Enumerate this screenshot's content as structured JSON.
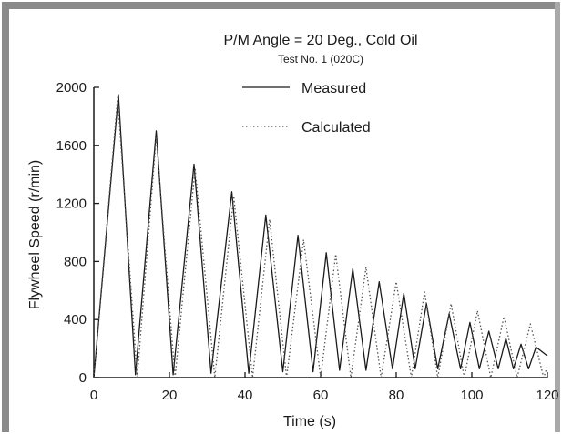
{
  "chart_data": {
    "type": "line",
    "title": "P/M Angle = 20 Deg., Cold Oil",
    "subtitle": "Test No. 1 (020C)",
    "xlabel": "Time (s)",
    "ylabel": "Flywheel Speed (r/min)",
    "xlim": [
      0,
      120
    ],
    "ylim": [
      0,
      2000
    ],
    "xticks": [
      "0",
      "20",
      "40",
      "60",
      "80",
      "100",
      "120"
    ],
    "yticks": [
      "0",
      "400",
      "800",
      "1200",
      "1600",
      "2000"
    ],
    "grid": false,
    "legend_position": "top-center",
    "series": [
      {
        "name": "Measured",
        "style": "solid",
        "color": "#1a1a1a",
        "x": [
          0,
          6.5,
          11,
          16.5,
          21,
          26.5,
          31,
          36.5,
          41,
          45.5,
          50,
          54,
          58,
          61.5,
          65,
          68.5,
          72,
          75.5,
          79,
          82,
          85,
          88,
          91,
          94,
          97,
          99.5,
          102,
          104.5,
          107,
          109,
          111,
          113,
          115,
          117,
          120
        ],
        "y": [
          0,
          1950,
          20,
          1700,
          20,
          1470,
          30,
          1280,
          30,
          1120,
          40,
          980,
          40,
          860,
          50,
          750,
          50,
          660,
          60,
          580,
          60,
          510,
          60,
          440,
          60,
          380,
          60,
          320,
          60,
          270,
          60,
          230,
          60,
          210,
          150
        ]
      },
      {
        "name": "Calculated",
        "style": "dotted",
        "color": "#555555",
        "x": [
          0,
          6.3,
          11.5,
          16.5,
          21.5,
          26.8,
          32,
          37,
          42,
          46.5,
          51,
          55.5,
          60,
          64,
          68,
          72,
          76,
          80,
          84,
          87.5,
          91,
          94.5,
          98,
          101.5,
          105,
          108.5,
          112,
          115.5,
          119,
          120
        ],
        "y": [
          0,
          1930,
          0,
          1660,
          0,
          1440,
          0,
          1250,
          0,
          1090,
          0,
          950,
          0,
          850,
          0,
          760,
          0,
          660,
          0,
          590,
          0,
          510,
          0,
          460,
          0,
          420,
          0,
          370,
          0,
          80
        ]
      }
    ]
  }
}
